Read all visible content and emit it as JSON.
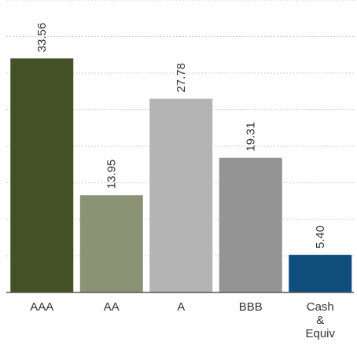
{
  "chart_data": {
    "type": "bar",
    "categories": [
      "AAA",
      "AA",
      "A",
      "BBB",
      "Cash & Equiv"
    ],
    "category_lines": [
      [
        "AAA"
      ],
      [
        "AA"
      ],
      [
        "A"
      ],
      [
        "BBB"
      ],
      [
        "Cash",
        "&",
        "Equiv"
      ]
    ],
    "values": [
      33.56,
      13.95,
      27.78,
      19.31,
      5.4
    ],
    "value_labels": [
      "33.56",
      "13.95",
      "27.78",
      "19.31",
      "5.40"
    ],
    "colors": [
      "#435127",
      "#8c9274",
      "#b4b4b4",
      "#949494",
      "#0e4d7c"
    ],
    "title": "",
    "xlabel": "",
    "ylabel": "",
    "ylim": [
      0,
      37.5
    ],
    "grid": true,
    "legend": "none"
  }
}
